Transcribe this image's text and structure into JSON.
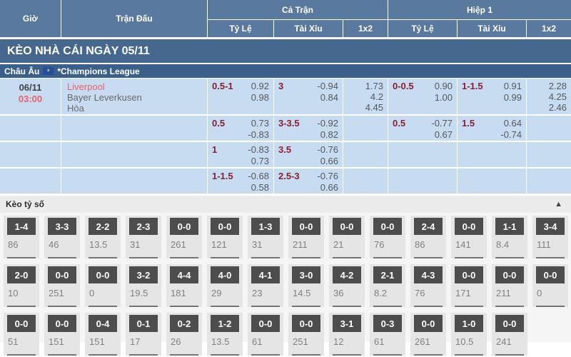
{
  "table_header": {
    "time": "Giờ",
    "match": "Trận Đấu",
    "full_time": "Cả Trận",
    "first_half": "Hiệp 1",
    "handicap": "Tỷ Lệ",
    "over_under": "Tài Xỉu",
    "one_x_two": "1x2"
  },
  "banner": {
    "title": "KÈO NHÀ CÁI NGÀY 05/11"
  },
  "league_bar": {
    "region": "Châu Âu",
    "league": "*Champions League"
  },
  "match": {
    "date": "06/11",
    "time": "03:00",
    "home_team": "Liverpool",
    "away_team": "Bayer Leverkusen",
    "draw_label": "Hòa"
  },
  "odds": {
    "row1": {
      "ft_hdp_line": "0.5-1",
      "ft_hdp_home": "0.92",
      "ft_hdp_away": "0.98",
      "ft_ou_line": "3",
      "ft_ou_over": "-0.94",
      "ft_ou_under": "0.84",
      "ft_1x2_home": "1.73",
      "ft_1x2_draw": "4.2",
      "ft_1x2_away": "4.45",
      "h1_hdp_line": "0-0.5",
      "h1_hdp_home": "0.90",
      "h1_hdp_away": "1.00",
      "h1_ou_line": "1-1.5",
      "h1_ou_over": "0.91",
      "h1_ou_under": "0.99",
      "h1_1x2_home": "2.28",
      "h1_1x2_draw": "4.25",
      "h1_1x2_away": "2.46"
    },
    "row2": {
      "ft_hdp_line": "0.5",
      "ft_hdp_home": "0.73",
      "ft_hdp_away": "-0.83",
      "ft_ou_line": "3-3.5",
      "ft_ou_over": "-0.92",
      "ft_ou_under": "0.82",
      "h1_hdp_line": "0.5",
      "h1_hdp_home": "-0.77",
      "h1_hdp_away": "0.67",
      "h1_ou_line": "1.5",
      "h1_ou_over": "0.64",
      "h1_ou_under": "-0.74"
    },
    "row3": {
      "ft_hdp_line": "1",
      "ft_hdp_home": "-0.83",
      "ft_hdp_away": "0.73",
      "ft_ou_line": "3.5",
      "ft_ou_over": "-0.76",
      "ft_ou_under": "0.66"
    },
    "row4": {
      "ft_hdp_line": "1-1.5",
      "ft_hdp_home": "-0.68",
      "ft_hdp_away": "0.58",
      "ft_ou_line": "2.5-3",
      "ft_ou_over": "-0.76",
      "ft_ou_under": "0.66"
    }
  },
  "score_section": {
    "title": "Kèo tỷ số",
    "collapse_icon": "▲",
    "rows": [
      [
        {
          "score": "1-4",
          "odds": "86"
        },
        {
          "score": "3-3",
          "odds": "46"
        },
        {
          "score": "2-2",
          "odds": "13.5"
        },
        {
          "score": "2-3",
          "odds": "31"
        },
        {
          "score": "0-0",
          "odds": "261"
        },
        {
          "score": "0-0",
          "odds": "121"
        },
        {
          "score": "1-3",
          "odds": "31"
        },
        {
          "score": "0-0",
          "odds": "211"
        },
        {
          "score": "0-0",
          "odds": "21"
        },
        {
          "score": "0-0",
          "odds": "76"
        },
        {
          "score": "2-4",
          "odds": "86"
        },
        {
          "score": "0-0",
          "odds": "141"
        },
        {
          "score": "1-1",
          "odds": "8.4"
        },
        {
          "score": "3-4",
          "odds": "111"
        }
      ],
      [
        {
          "score": "2-0",
          "odds": "10"
        },
        {
          "score": "0-0",
          "odds": "251"
        },
        {
          "score": "0-0",
          "odds": "0"
        },
        {
          "score": "3-2",
          "odds": "19.5"
        },
        {
          "score": "4-4",
          "odds": "181"
        },
        {
          "score": "4-0",
          "odds": "29"
        },
        {
          "score": "4-1",
          "odds": "23"
        },
        {
          "score": "3-0",
          "odds": "14.5"
        },
        {
          "score": "4-2",
          "odds": "36"
        },
        {
          "score": "2-1",
          "odds": "8.2"
        },
        {
          "score": "4-3",
          "odds": "76"
        },
        {
          "score": "0-0",
          "odds": "171"
        },
        {
          "score": "0-0",
          "odds": "211"
        },
        {
          "score": "0-0",
          "odds": "0"
        }
      ],
      [
        {
          "score": "0-0",
          "odds": "51"
        },
        {
          "score": "0-0",
          "odds": "151"
        },
        {
          "score": "0-4",
          "odds": "151"
        },
        {
          "score": "0-1",
          "odds": "17"
        },
        {
          "score": "0-2",
          "odds": "26"
        },
        {
          "score": "1-2",
          "odds": "13.5"
        },
        {
          "score": "0-0",
          "odds": "61"
        },
        {
          "score": "0-0",
          "odds": "251"
        },
        {
          "score": "3-1",
          "odds": "12"
        },
        {
          "score": "0-3",
          "odds": "61"
        },
        {
          "score": "0-0",
          "odds": "261"
        },
        {
          "score": "1-0",
          "odds": "10.5"
        },
        {
          "score": "0-0",
          "odds": "241"
        }
      ]
    ]
  },
  "colors": {
    "header_blue": "#5a799e",
    "banner_blue": "#46678e",
    "league_blue": "#3b5f8b",
    "row_light_blue": "#c8dcf1",
    "handicap_red": "#8a1f2e",
    "highlight_red": "#e9606a",
    "score_box_gray": "#4d4d4d"
  }
}
